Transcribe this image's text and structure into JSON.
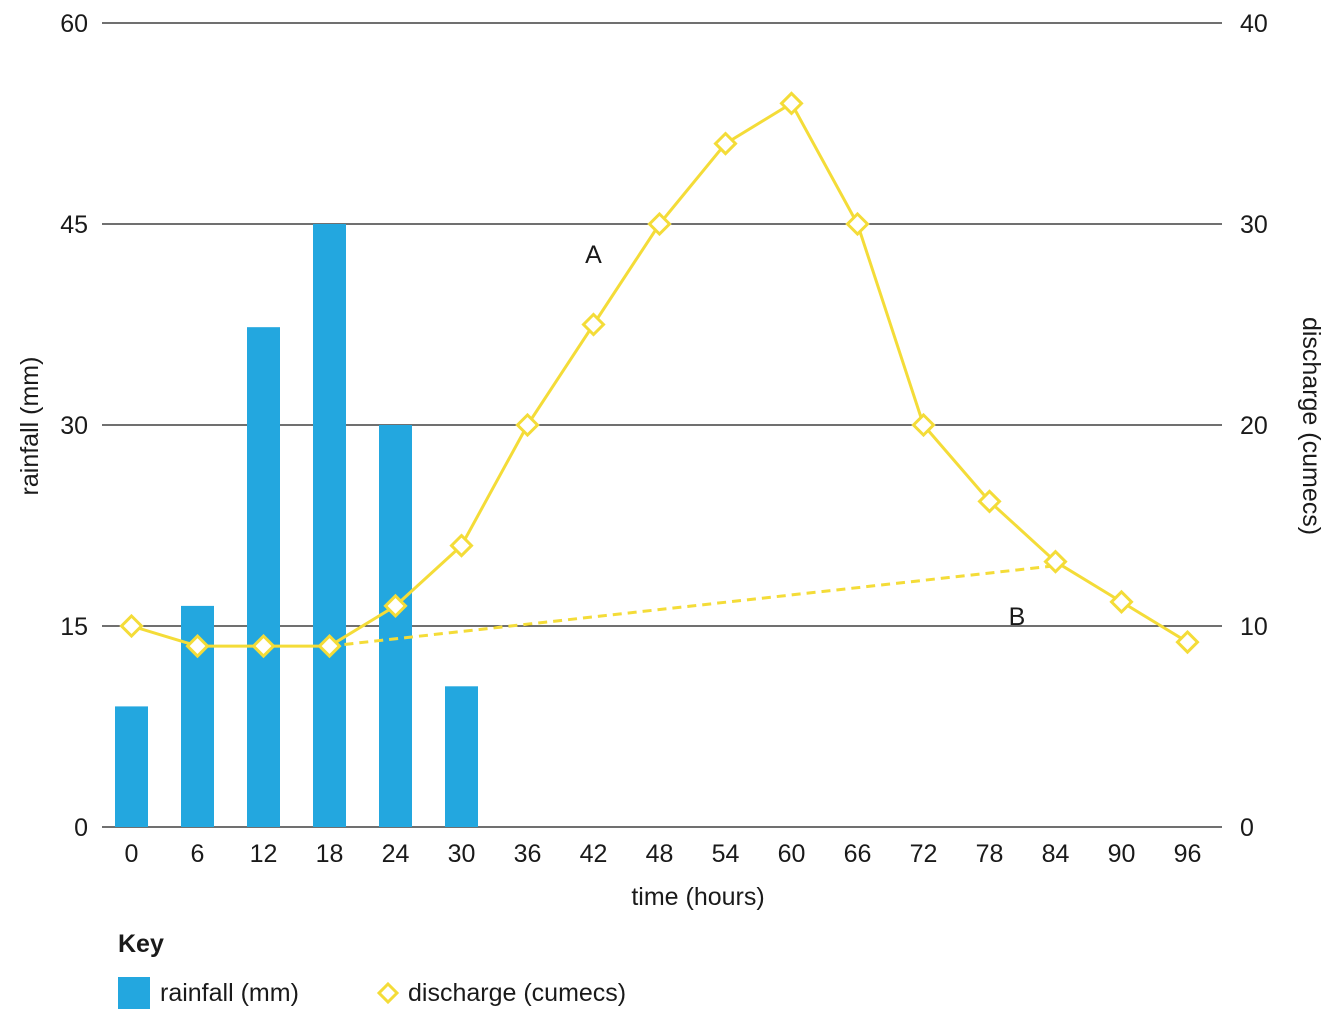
{
  "chart_data": {
    "type": "bar+line",
    "x_categories": [
      "0",
      "6",
      "12",
      "18",
      "24",
      "30",
      "36",
      "42",
      "48",
      "54",
      "60",
      "66",
      "72",
      "78",
      "84",
      "90",
      "96"
    ],
    "xlabel": "time (hours)",
    "ylabel_left": "rainfall (mm)",
    "ylabel_right": "discharge (cumecs)",
    "ylim_left": [
      0,
      60
    ],
    "yticks_left": [
      0,
      15,
      30,
      45,
      60
    ],
    "ylim_right": [
      0,
      40
    ],
    "yticks_right": [
      0,
      10,
      20,
      30,
      40
    ],
    "grid": "horizontal",
    "series": [
      {
        "name": "rainfall (mm)",
        "type": "bar",
        "axis": "left",
        "color": "#23a7df",
        "x": [
          0,
          6,
          12,
          18,
          24,
          30
        ],
        "values": [
          9,
          16.5,
          37.3,
          45,
          30,
          10.5
        ]
      },
      {
        "name": "discharge (cumecs)",
        "type": "line",
        "axis": "right",
        "color": "#f4dc38",
        "marker": "diamond",
        "x": [
          0,
          6,
          12,
          18,
          24,
          30,
          36,
          42,
          48,
          54,
          60,
          66,
          72,
          78,
          84,
          90,
          96
        ],
        "values": [
          10,
          9,
          9,
          9,
          11,
          14,
          20,
          25,
          30,
          34,
          36,
          30,
          20,
          16.2,
          13.2,
          11.2,
          9.2
        ]
      },
      {
        "type": "dashed-line",
        "axis": "right",
        "color": "#f4dc38",
        "x": [
          18,
          84
        ],
        "values": [
          9,
          13
        ]
      }
    ],
    "annotations": [
      {
        "text": "A",
        "x": 42,
        "y": 28.5,
        "axis": "right"
      },
      {
        "text": "B",
        "x": 80.5,
        "y": 10.5,
        "axis": "right"
      }
    ]
  },
  "key": {
    "title": "Key",
    "rainfall_label": "rainfall (mm)",
    "discharge_label": "discharge (cumecs)"
  }
}
